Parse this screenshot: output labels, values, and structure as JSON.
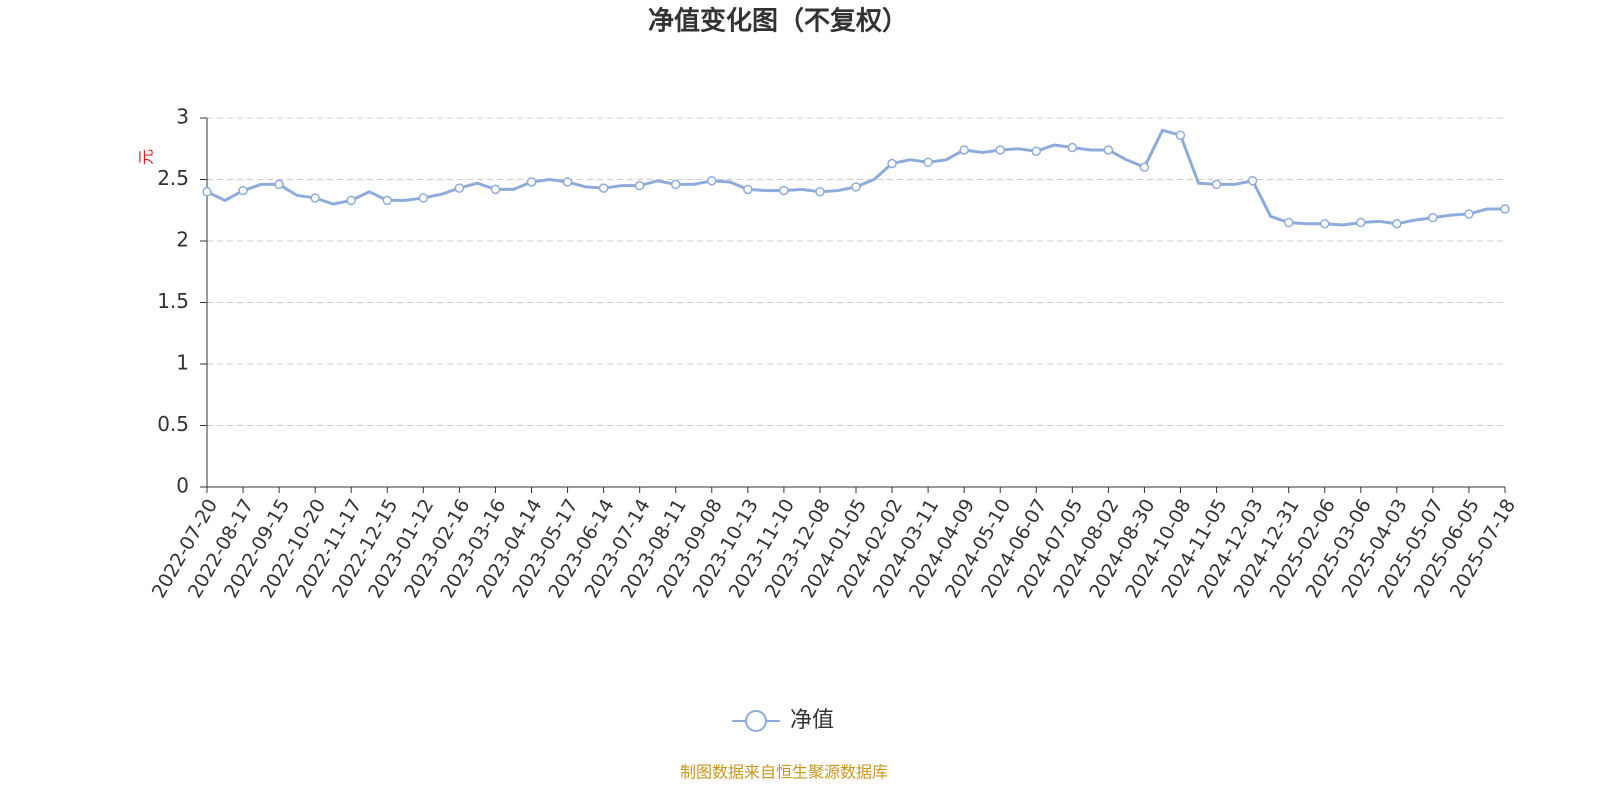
{
  "chart_data": {
    "type": "line",
    "title": "净值变化图（不复权）",
    "y_label": "元",
    "source": "制图数据来自恒生聚源数据库",
    "categories": [
      "2022-07-20",
      null,
      "2022-08-17",
      null,
      "2022-09-15",
      null,
      "2022-10-20",
      null,
      "2022-11-17",
      null,
      "2022-12-15",
      null,
      "2023-01-12",
      null,
      "2023-02-16",
      null,
      "2023-03-16",
      null,
      "2023-04-14",
      null,
      "2023-05-17",
      null,
      "2023-06-14",
      null,
      "2023-07-14",
      null,
      "2023-08-11",
      null,
      "2023-09-08",
      null,
      "2023-10-13",
      null,
      "2023-11-10",
      null,
      "2023-12-08",
      null,
      "2024-01-05",
      null,
      "2024-02-02",
      null,
      "2024-03-11",
      null,
      "2024-04-09",
      null,
      "2024-05-10",
      null,
      "2024-06-07",
      null,
      "2024-07-05",
      null,
      "2024-08-02",
      null,
      "2024-08-30",
      null,
      "2024-10-08",
      null,
      "2024-11-05",
      null,
      "2024-12-03",
      null,
      "2024-12-31",
      null,
      "2025-02-06",
      null,
      "2025-03-06",
      null,
      "2025-04-03",
      null,
      "2025-05-07",
      null,
      "2025-06-05",
      null,
      "2025-07-18"
    ],
    "series": [
      {
        "name": "净值",
        "color": "#8eacdb",
        "values": [
          2.4,
          2.33,
          2.41,
          2.46,
          2.46,
          2.37,
          2.35,
          2.3,
          2.33,
          2.4,
          2.33,
          2.33,
          2.35,
          2.38,
          2.43,
          2.47,
          2.42,
          2.42,
          2.48,
          2.5,
          2.48,
          2.44,
          2.43,
          2.45,
          2.45,
          2.49,
          2.46,
          2.46,
          2.49,
          2.48,
          2.42,
          2.41,
          2.41,
          2.42,
          2.4,
          2.41,
          2.44,
          2.5,
          2.63,
          2.66,
          2.64,
          2.66,
          2.74,
          2.72,
          2.74,
          2.75,
          2.73,
          2.78,
          2.76,
          2.74,
          2.74,
          2.66,
          2.6,
          2.9,
          2.86,
          2.47,
          2.46,
          2.46,
          2.49,
          2.2,
          2.15,
          2.14,
          2.14,
          2.13,
          2.15,
          2.16,
          2.14,
          2.17,
          2.19,
          2.21,
          2.22,
          2.26,
          2.26
        ]
      }
    ],
    "ylim": [
      0,
      3
    ],
    "yticks": [
      0,
      0.5,
      1,
      1.5,
      2,
      2.5,
      3
    ],
    "grid": true
  }
}
